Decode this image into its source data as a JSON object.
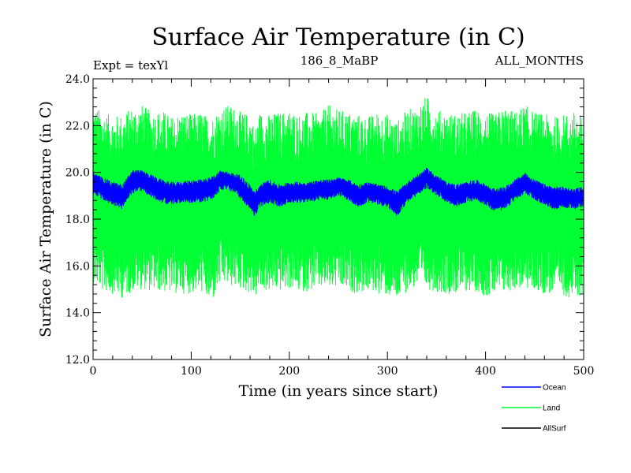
{
  "header": {
    "title": "Surface Air Temperature (in C)",
    "experiment": "Expt = texYl",
    "subtitle": "186_8_MaBP",
    "period": "ALL_MONTHS"
  },
  "chart_data": {
    "type": "line",
    "title": "Surface Air Temperature (in C)",
    "xlabel": "Time (in years since start)",
    "ylabel": "Surface Air Temperature (in C)",
    "xlim": [
      0,
      500
    ],
    "ylim": [
      12.0,
      24.0
    ],
    "x_ticks": [
      "0",
      "100",
      "200",
      "300",
      "400",
      "500"
    ],
    "y_ticks": [
      "12.0",
      "14.0",
      "16.0",
      "18.0",
      "20.0",
      "22.0",
      "24.0"
    ],
    "grid": false,
    "legend_position": "bottom-right, outside plot",
    "x": [
      0,
      10,
      20,
      30,
      40,
      50,
      60,
      70,
      80,
      90,
      100,
      110,
      120,
      130,
      140,
      150,
      160,
      165,
      170,
      180,
      190,
      200,
      210,
      220,
      230,
      240,
      250,
      260,
      270,
      280,
      290,
      300,
      310,
      320,
      330,
      340,
      350,
      360,
      370,
      380,
      390,
      400,
      410,
      420,
      430,
      440,
      450,
      460,
      470,
      480,
      490,
      500
    ],
    "series": [
      {
        "name": "Land",
        "color": "#00ff33",
        "mean": [
          18.8,
          18.6,
          18.5,
          18.4,
          18.9,
          18.9,
          18.8,
          18.7,
          18.6,
          18.6,
          18.6,
          18.7,
          18.7,
          19.1,
          19.1,
          18.9,
          18.6,
          18.3,
          18.6,
          18.7,
          18.6,
          18.7,
          18.7,
          18.7,
          18.8,
          18.8,
          18.9,
          18.7,
          18.6,
          18.7,
          18.6,
          18.4,
          18.4,
          18.8,
          19.0,
          18.9,
          18.7,
          18.6,
          18.5,
          18.6,
          18.7,
          18.6,
          18.5,
          18.6,
          18.8,
          18.9,
          18.7,
          18.6,
          18.5,
          18.5,
          18.4,
          18.6
        ],
        "max_env": [
          22.9,
          22.6,
          22.4,
          22.5,
          22.8,
          22.9,
          22.6,
          22.7,
          22.4,
          22.6,
          22.5,
          22.6,
          22.3,
          22.8,
          22.9,
          22.6,
          22.5,
          21.9,
          22.6,
          22.5,
          22.6,
          22.7,
          22.5,
          22.6,
          22.5,
          22.9,
          22.7,
          22.6,
          22.5,
          22.4,
          22.6,
          22.5,
          22.2,
          22.7,
          22.8,
          23.3,
          22.7,
          22.6,
          22.5,
          22.6,
          22.7,
          22.6,
          22.5,
          22.8,
          22.6,
          22.9,
          22.6,
          22.5,
          22.4,
          22.5,
          22.6,
          22.4
        ],
        "min_env": [
          15.3,
          14.9,
          14.8,
          14.6,
          14.9,
          15.0,
          14.9,
          14.9,
          14.8,
          14.8,
          14.8,
          14.9,
          14.3,
          15.2,
          15.1,
          15.0,
          14.8,
          14.6,
          14.9,
          14.9,
          14.9,
          15.0,
          14.9,
          14.9,
          15.0,
          15.0,
          15.0,
          14.9,
          14.8,
          14.9,
          14.8,
          14.7,
          14.5,
          14.9,
          15.1,
          15.0,
          14.9,
          14.8,
          14.8,
          14.9,
          14.9,
          14.7,
          14.7,
          14.8,
          15.0,
          15.0,
          14.9,
          14.8,
          14.8,
          14.7,
          14.6,
          14.7
        ]
      },
      {
        "name": "Ocean",
        "color": "#0000ff",
        "mean": [
          19.5,
          19.3,
          19.1,
          18.9,
          19.8,
          19.7,
          19.4,
          19.2,
          19.1,
          19.2,
          19.2,
          19.2,
          19.3,
          19.8,
          19.7,
          19.4,
          18.9,
          18.6,
          19.0,
          19.2,
          19.0,
          19.2,
          19.2,
          19.2,
          19.3,
          19.3,
          19.5,
          19.3,
          19.0,
          19.2,
          19.1,
          19.0,
          18.7,
          19.2,
          19.5,
          19.8,
          19.5,
          19.2,
          19.0,
          19.2,
          19.3,
          19.1,
          18.8,
          18.9,
          19.3,
          19.6,
          19.3,
          19.1,
          18.9,
          19.0,
          18.9,
          19.0
        ],
        "max_env": [
          20.0,
          19.8,
          19.6,
          19.5,
          20.1,
          20.1,
          19.9,
          19.7,
          19.6,
          19.6,
          19.7,
          19.7,
          19.8,
          20.1,
          20.0,
          19.9,
          19.5,
          19.2,
          19.5,
          19.7,
          19.5,
          19.6,
          19.6,
          19.6,
          19.7,
          19.7,
          19.8,
          19.7,
          19.5,
          19.6,
          19.5,
          19.4,
          19.2,
          19.6,
          19.9,
          20.2,
          19.9,
          19.6,
          19.5,
          19.6,
          19.7,
          19.5,
          19.3,
          19.4,
          19.7,
          20.0,
          19.7,
          19.5,
          19.4,
          19.4,
          19.3,
          19.4
        ],
        "min_env": [
          19.1,
          18.8,
          18.6,
          18.4,
          19.1,
          19.2,
          18.9,
          18.7,
          18.6,
          18.7,
          18.7,
          18.7,
          18.8,
          19.2,
          19.2,
          18.9,
          18.4,
          18.1,
          18.5,
          18.7,
          18.5,
          18.7,
          18.7,
          18.7,
          18.8,
          18.8,
          19.0,
          18.8,
          18.5,
          18.7,
          18.6,
          18.5,
          18.1,
          18.7,
          19.0,
          19.3,
          19.0,
          18.7,
          18.5,
          18.7,
          18.8,
          18.6,
          18.3,
          18.4,
          18.8,
          19.1,
          18.8,
          18.6,
          18.4,
          18.5,
          18.4,
          18.5
        ]
      },
      {
        "name": "AllSurf",
        "color": "#000000",
        "mean": []
      }
    ]
  }
}
